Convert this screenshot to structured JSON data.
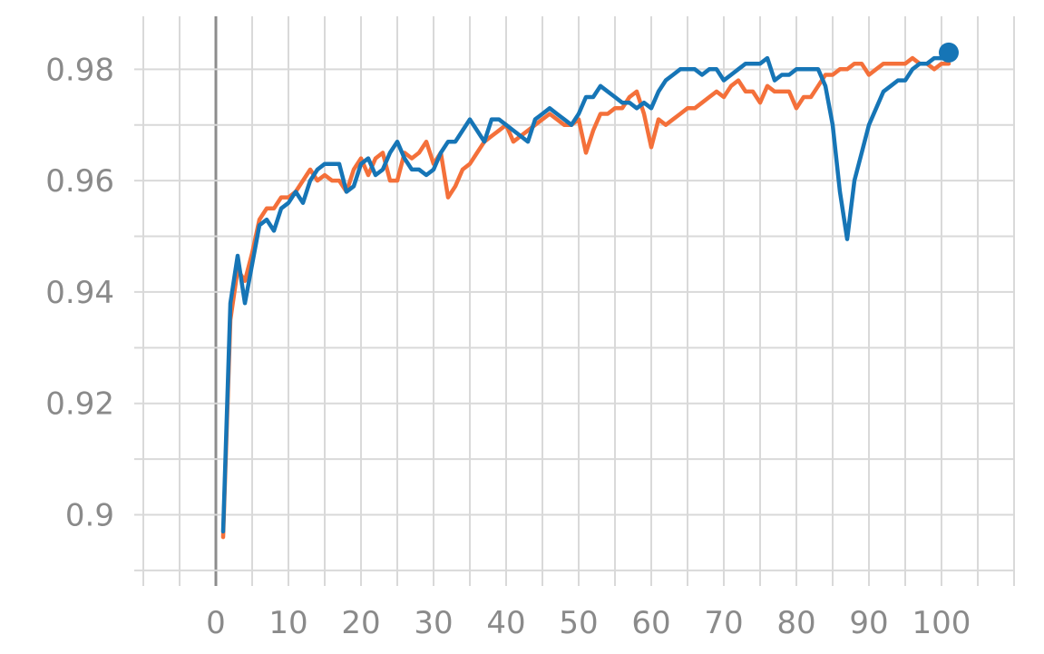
{
  "chart_data": {
    "type": "line",
    "title": "",
    "xlabel": "",
    "ylabel": "",
    "xlim": [
      -10,
      110
    ],
    "ylim": [
      0.8895,
      0.9895
    ],
    "x_ticks": [
      0,
      10,
      20,
      30,
      40,
      50,
      60,
      70,
      80,
      90,
      100
    ],
    "x_tick_labels": [
      "0",
      "10",
      "20",
      "30",
      "40",
      "50",
      "60",
      "70",
      "80",
      "90",
      "100"
    ],
    "y_ticks": [
      0.9,
      0.92,
      0.94,
      0.96,
      0.98
    ],
    "y_tick_labels": [
      "0.9",
      "0.92",
      "0.94",
      "0.96",
      "0.98"
    ],
    "grid": true,
    "series": [
      {
        "color": "#f4703a",
        "x": [
          1,
          2,
          3,
          4,
          5,
          6,
          7,
          8,
          9,
          10,
          11,
          12,
          13,
          14,
          15,
          16,
          17,
          18,
          19,
          20,
          21,
          22,
          23,
          24,
          25,
          26,
          27,
          28,
          29,
          30,
          31,
          32,
          33,
          34,
          35,
          36,
          37,
          38,
          39,
          40,
          41,
          42,
          43,
          44,
          45,
          46,
          47,
          48,
          49,
          50,
          51,
          52,
          53,
          54,
          55,
          56,
          57,
          58,
          59,
          60,
          61,
          62,
          63,
          64,
          65,
          66,
          67,
          68,
          69,
          70,
          71,
          72,
          73,
          74,
          75,
          76,
          77,
          78,
          79,
          80,
          81,
          82,
          83,
          84,
          85,
          86,
          87,
          88,
          89,
          90,
          91,
          92,
          93,
          94,
          95,
          96,
          97,
          98,
          99,
          100,
          101
        ],
        "values": [
          0.896,
          0.935,
          0.944,
          0.942,
          0.947,
          0.953,
          0.955,
          0.955,
          0.957,
          0.957,
          0.958,
          0.96,
          0.962,
          0.96,
          0.961,
          0.96,
          0.96,
          0.958,
          0.962,
          0.964,
          0.961,
          0.964,
          0.965,
          0.96,
          0.96,
          0.965,
          0.964,
          0.965,
          0.967,
          0.963,
          0.965,
          0.957,
          0.959,
          0.962,
          0.963,
          0.965,
          0.967,
          0.968,
          0.969,
          0.97,
          0.967,
          0.968,
          0.969,
          0.97,
          0.971,
          0.972,
          0.971,
          0.97,
          0.97,
          0.971,
          0.965,
          0.969,
          0.972,
          0.972,
          0.973,
          0.973,
          0.975,
          0.976,
          0.972,
          0.966,
          0.971,
          0.97,
          0.971,
          0.972,
          0.973,
          0.973,
          0.974,
          0.975,
          0.976,
          0.975,
          0.977,
          0.978,
          0.976,
          0.976,
          0.974,
          0.977,
          0.976,
          0.976,
          0.976,
          0.973,
          0.975,
          0.975,
          0.977,
          0.979,
          0.979,
          0.98,
          0.98,
          0.981,
          0.981,
          0.979,
          0.98,
          0.981,
          0.981,
          0.981,
          0.981,
          0.982,
          0.981,
          0.981,
          0.98,
          0.981,
          0.981
        ]
      },
      {
        "color": "#1675b6",
        "x": [
          1,
          2,
          3,
          4,
          5,
          6,
          7,
          8,
          9,
          10,
          11,
          12,
          13,
          14,
          15,
          16,
          17,
          18,
          19,
          20,
          21,
          22,
          23,
          24,
          25,
          26,
          27,
          28,
          29,
          30,
          31,
          32,
          33,
          34,
          35,
          36,
          37,
          38,
          39,
          40,
          41,
          42,
          43,
          44,
          45,
          46,
          47,
          48,
          49,
          50,
          51,
          52,
          53,
          54,
          55,
          56,
          57,
          58,
          59,
          60,
          61,
          62,
          63,
          64,
          65,
          66,
          67,
          68,
          69,
          70,
          71,
          72,
          73,
          74,
          75,
          76,
          77,
          78,
          79,
          80,
          81,
          82,
          83,
          84,
          85,
          86,
          87,
          88,
          89,
          90,
          91,
          92,
          93,
          94,
          95,
          96,
          97,
          98,
          99,
          100,
          101
        ],
        "values": [
          0.897,
          0.938,
          0.9465,
          0.938,
          0.945,
          0.952,
          0.953,
          0.951,
          0.955,
          0.956,
          0.958,
          0.956,
          0.96,
          0.962,
          0.963,
          0.963,
          0.963,
          0.958,
          0.959,
          0.963,
          0.964,
          0.961,
          0.962,
          0.965,
          0.967,
          0.964,
          0.962,
          0.962,
          0.961,
          0.962,
          0.965,
          0.967,
          0.967,
          0.969,
          0.971,
          0.969,
          0.967,
          0.971,
          0.971,
          0.97,
          0.969,
          0.968,
          0.967,
          0.971,
          0.972,
          0.973,
          0.972,
          0.971,
          0.97,
          0.972,
          0.975,
          0.975,
          0.977,
          0.976,
          0.975,
          0.974,
          0.974,
          0.973,
          0.974,
          0.973,
          0.976,
          0.978,
          0.979,
          0.98,
          0.98,
          0.98,
          0.979,
          0.98,
          0.98,
          0.978,
          0.979,
          0.98,
          0.981,
          0.981,
          0.981,
          0.982,
          0.978,
          0.979,
          0.979,
          0.98,
          0.98,
          0.98,
          0.98,
          0.977,
          0.97,
          0.958,
          0.9495,
          0.96,
          0.965,
          0.97,
          0.973,
          0.976,
          0.977,
          0.978,
          0.978,
          0.98,
          0.981,
          0.981,
          0.982,
          0.982,
          0.983
        ]
      }
    ],
    "end_marker": {
      "x": 101,
      "y": 0.983,
      "color": "#1675b6"
    }
  }
}
